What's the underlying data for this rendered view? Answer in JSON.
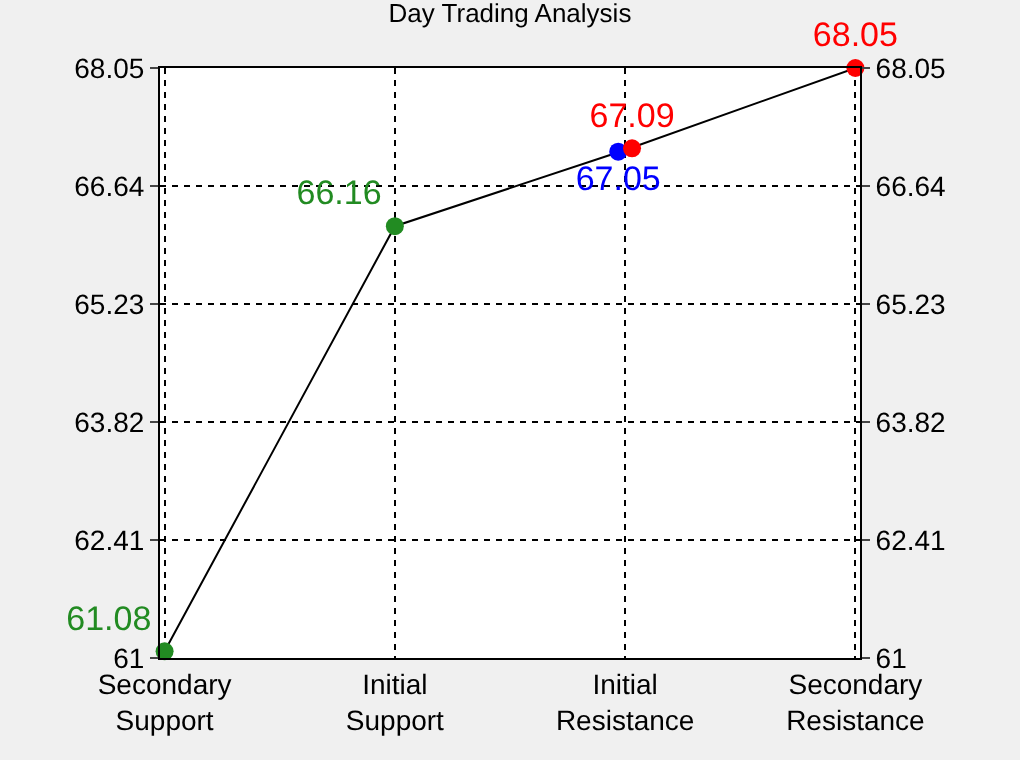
{
  "chart_data": {
    "type": "line",
    "title": "Day Trading Analysis",
    "categories": [
      "Secondary Support",
      "Initial Support",
      "Initial Resistance",
      "Secondary Resistance"
    ],
    "series": [
      {
        "color": "#000000",
        "values": [
          61.08,
          66.16,
          67.07,
          68.05
        ],
        "marker": "none"
      },
      {
        "type": "scatter",
        "color": "#228b22",
        "values": [
          61.08,
          66.16,
          null,
          null
        ],
        "value_labels": [
          "61.08",
          "66.16",
          null,
          null
        ],
        "marker": "circle"
      },
      {
        "type": "scatter",
        "color": "#0000ff",
        "values": [
          null,
          null,
          67.05,
          null
        ],
        "value_labels": [
          null,
          null,
          "67.05",
          null
        ],
        "marker": "circle"
      },
      {
        "type": "scatter",
        "color": "#ff0000",
        "values": [
          null,
          null,
          67.09,
          68.05
        ],
        "value_labels": [
          null,
          null,
          "67.09",
          "68.05"
        ],
        "marker": "circle"
      }
    ],
    "ylim": [
      61,
      68.05
    ],
    "yticks": [
      61,
      62.41,
      63.82,
      65.23,
      66.64,
      68.05
    ],
    "y2lim": [
      61,
      68.05
    ],
    "y2ticks": [
      61,
      62.41,
      63.82,
      65.23,
      66.64,
      68.05
    ],
    "grid": true
  }
}
